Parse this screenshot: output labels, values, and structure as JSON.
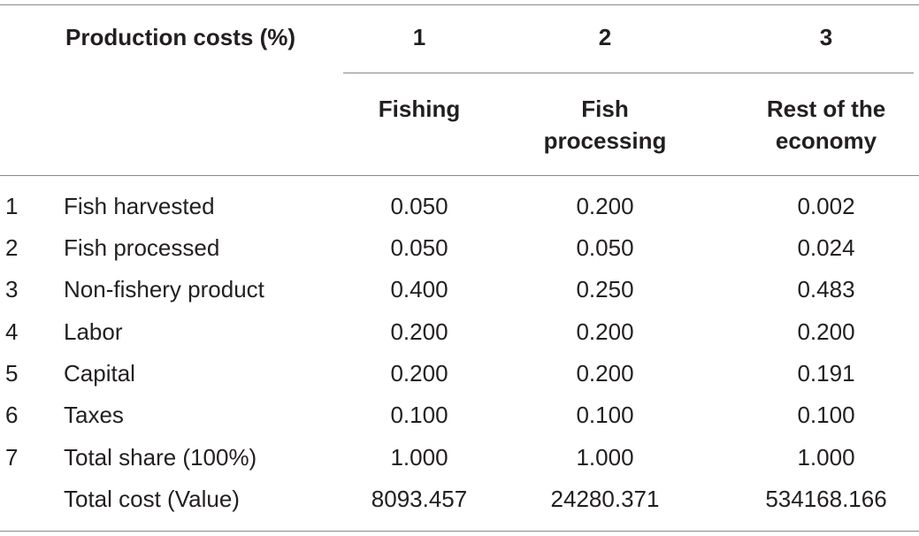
{
  "table": {
    "header": {
      "row_label": "Production costs (%)",
      "col_numbers": [
        "1",
        "2",
        "3"
      ],
      "col_names": [
        [
          "Fishing"
        ],
        [
          "Fish",
          "processing"
        ],
        [
          "Rest of the",
          "economy"
        ]
      ]
    },
    "rows": [
      {
        "num": "1",
        "label": "Fish harvested",
        "values": [
          "0.050",
          "0.200",
          "0.002"
        ]
      },
      {
        "num": "2",
        "label": "Fish processed",
        "values": [
          "0.050",
          "0.050",
          "0.024"
        ]
      },
      {
        "num": "3",
        "label": "Non-fishery product",
        "values": [
          "0.400",
          "0.250",
          "0.483"
        ]
      },
      {
        "num": "4",
        "label": "Labor",
        "values": [
          "0.200",
          "0.200",
          "0.200"
        ]
      },
      {
        "num": "5",
        "label": "Capital",
        "values": [
          "0.200",
          "0.200",
          "0.191"
        ]
      },
      {
        "num": "6",
        "label": "Taxes",
        "values": [
          "0.100",
          "0.100",
          "0.100"
        ]
      },
      {
        "num": "7",
        "label": "Total share (100%)",
        "values": [
          "1.000",
          "1.000",
          "1.000"
        ]
      },
      {
        "num": "",
        "label": "Total cost (Value)",
        "values": [
          "8093.457",
          "24280.371",
          "534168.166"
        ]
      }
    ]
  }
}
